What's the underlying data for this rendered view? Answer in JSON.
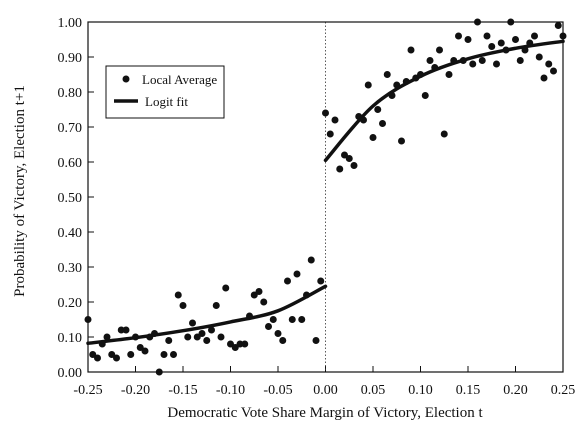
{
  "chart_data": {
    "type": "scatter",
    "title": "",
    "xlabel": "Democratic Vote Share Margin of Victory, Election t",
    "ylabel": "Probability of  Victory, Election t+1",
    "xlim": [
      -0.25,
      0.25
    ],
    "ylim": [
      0,
      1
    ],
    "x_ticks": [
      "-0.25",
      "-0.20",
      "-0.15",
      "-0.10",
      "-0.05",
      "0.00",
      "0.05",
      "0.10",
      "0.15",
      "0.20",
      "0.25"
    ],
    "y_ticks": [
      "0.00",
      "0.10",
      "0.20",
      "0.30",
      "0.40",
      "0.50",
      "0.60",
      "0.70",
      "0.80",
      "0.90",
      "1.00"
    ],
    "grid": false,
    "cutoff_line": {
      "x": 0,
      "style": "dotted"
    },
    "legend": {
      "placement": "upper-left",
      "entries": [
        {
          "label": "Local Average",
          "marker": "dot"
        },
        {
          "label": "Logit fit",
          "marker": "line"
        }
      ]
    },
    "series": [
      {
        "name": "Local Average",
        "type": "scatter",
        "points": [
          [
            -0.25,
            0.15
          ],
          [
            -0.245,
            0.05
          ],
          [
            -0.24,
            0.04
          ],
          [
            -0.235,
            0.08
          ],
          [
            -0.23,
            0.1
          ],
          [
            -0.225,
            0.05
          ],
          [
            -0.22,
            0.04
          ],
          [
            -0.215,
            0.12
          ],
          [
            -0.21,
            0.12
          ],
          [
            -0.205,
            0.05
          ],
          [
            -0.2,
            0.1
          ],
          [
            -0.195,
            0.07
          ],
          [
            -0.19,
            0.06
          ],
          [
            -0.185,
            0.1
          ],
          [
            -0.18,
            0.11
          ],
          [
            -0.175,
            0.0
          ],
          [
            -0.17,
            0.05
          ],
          [
            -0.165,
            0.09
          ],
          [
            -0.16,
            0.05
          ],
          [
            -0.155,
            0.22
          ],
          [
            -0.15,
            0.19
          ],
          [
            -0.145,
            0.1
          ],
          [
            -0.14,
            0.14
          ],
          [
            -0.135,
            0.1
          ],
          [
            -0.13,
            0.11
          ],
          [
            -0.125,
            0.09
          ],
          [
            -0.12,
            0.12
          ],
          [
            -0.115,
            0.19
          ],
          [
            -0.11,
            0.1
          ],
          [
            -0.105,
            0.24
          ],
          [
            -0.1,
            0.08
          ],
          [
            -0.095,
            0.07
          ],
          [
            -0.09,
            0.08
          ],
          [
            -0.085,
            0.08
          ],
          [
            -0.08,
            0.16
          ],
          [
            -0.075,
            0.22
          ],
          [
            -0.07,
            0.23
          ],
          [
            -0.065,
            0.2
          ],
          [
            -0.06,
            0.13
          ],
          [
            -0.055,
            0.15
          ],
          [
            -0.05,
            0.11
          ],
          [
            -0.045,
            0.09
          ],
          [
            -0.04,
            0.26
          ],
          [
            -0.035,
            0.15
          ],
          [
            -0.03,
            0.28
          ],
          [
            -0.025,
            0.15
          ],
          [
            -0.02,
            0.22
          ],
          [
            -0.015,
            0.32
          ],
          [
            -0.01,
            0.09
          ],
          [
            -0.005,
            0.26
          ],
          [
            0.0,
            0.74
          ],
          [
            0.005,
            0.68
          ],
          [
            0.01,
            0.72
          ],
          [
            0.015,
            0.58
          ],
          [
            0.02,
            0.62
          ],
          [
            0.025,
            0.61
          ],
          [
            0.03,
            0.59
          ],
          [
            0.035,
            0.73
          ],
          [
            0.04,
            0.72
          ],
          [
            0.045,
            0.82
          ],
          [
            0.05,
            0.67
          ],
          [
            0.055,
            0.75
          ],
          [
            0.06,
            0.71
          ],
          [
            0.065,
            0.85
          ],
          [
            0.07,
            0.79
          ],
          [
            0.075,
            0.82
          ],
          [
            0.08,
            0.66
          ],
          [
            0.085,
            0.83
          ],
          [
            0.09,
            0.92
          ],
          [
            0.095,
            0.84
          ],
          [
            0.1,
            0.85
          ],
          [
            0.105,
            0.79
          ],
          [
            0.11,
            0.89
          ],
          [
            0.115,
            0.87
          ],
          [
            0.12,
            0.92
          ],
          [
            0.125,
            0.68
          ],
          [
            0.13,
            0.85
          ],
          [
            0.135,
            0.89
          ],
          [
            0.14,
            0.96
          ],
          [
            0.145,
            0.89
          ],
          [
            0.15,
            0.95
          ],
          [
            0.155,
            0.88
          ],
          [
            0.16,
            1.0
          ],
          [
            0.165,
            0.89
          ],
          [
            0.17,
            0.96
          ],
          [
            0.175,
            0.93
          ],
          [
            0.18,
            0.88
          ],
          [
            0.185,
            0.94
          ],
          [
            0.19,
            0.92
          ],
          [
            0.195,
            1.0
          ],
          [
            0.2,
            0.95
          ],
          [
            0.205,
            0.89
          ],
          [
            0.21,
            0.92
          ],
          [
            0.215,
            0.94
          ],
          [
            0.22,
            0.96
          ],
          [
            0.225,
            0.9
          ],
          [
            0.23,
            0.84
          ],
          [
            0.235,
            0.88
          ],
          [
            0.24,
            0.86
          ],
          [
            0.245,
            0.99
          ],
          [
            0.25,
            0.96
          ]
        ]
      },
      {
        "name": "Logit fit",
        "type": "line",
        "segments": [
          [
            [
              -0.25,
              0.082
            ],
            [
              -0.2,
              0.098
            ],
            [
              -0.15,
              0.118
            ],
            [
              -0.1,
              0.143
            ],
            [
              -0.05,
              0.175
            ],
            [
              0.0,
              0.245
            ]
          ],
          [
            [
              0.0,
              0.605
            ],
            [
              0.05,
              0.76
            ],
            [
              0.1,
              0.845
            ],
            [
              0.15,
              0.895
            ],
            [
              0.2,
              0.925
            ],
            [
              0.25,
              0.945
            ]
          ]
        ]
      }
    ]
  }
}
